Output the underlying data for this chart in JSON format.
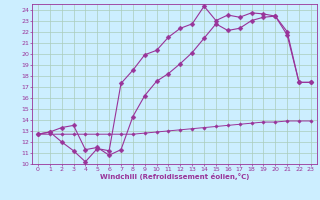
{
  "title": "",
  "xlabel": "Windchill (Refroidissement éolien,°C)",
  "ylabel": "",
  "bg_color": "#cceeff",
  "grid_color": "#aaccbb",
  "line_color": "#993399",
  "xlim": [
    -0.5,
    23.5
  ],
  "ylim": [
    10,
    24.5
  ],
  "xticks": [
    0,
    1,
    2,
    3,
    4,
    5,
    6,
    7,
    8,
    9,
    10,
    11,
    12,
    13,
    14,
    15,
    16,
    17,
    18,
    19,
    20,
    21,
    22,
    23
  ],
  "yticks": [
    10,
    11,
    12,
    13,
    14,
    15,
    16,
    17,
    18,
    19,
    20,
    21,
    22,
    23,
    24
  ],
  "line1_x": [
    0,
    1,
    2,
    3,
    4,
    5,
    6,
    7,
    8,
    9,
    10,
    11,
    12,
    13,
    14,
    15,
    16,
    17,
    18,
    19,
    20,
    21,
    22,
    23
  ],
  "line1_y": [
    12.7,
    12.9,
    12.0,
    11.2,
    10.2,
    11.4,
    11.2,
    17.3,
    18.5,
    19.9,
    20.3,
    21.5,
    22.3,
    22.7,
    24.3,
    23.0,
    23.5,
    23.3,
    23.7,
    23.6,
    23.4,
    22.0,
    17.4,
    17.4
  ],
  "line2_x": [
    0,
    1,
    2,
    3,
    4,
    5,
    6,
    7,
    8,
    9,
    10,
    11,
    12,
    13,
    14,
    15,
    16,
    17,
    18,
    19,
    20,
    21,
    22,
    23
  ],
  "line2_y": [
    12.7,
    12.9,
    13.3,
    13.5,
    11.3,
    11.5,
    10.8,
    11.3,
    14.3,
    16.2,
    17.5,
    18.2,
    19.1,
    20.1,
    21.4,
    22.7,
    22.1,
    22.3,
    23.0,
    23.3,
    23.4,
    21.7,
    17.4,
    17.4
  ],
  "line3_x": [
    0,
    1,
    2,
    3,
    4,
    5,
    6,
    7,
    8,
    9,
    10,
    11,
    12,
    13,
    14,
    15,
    16,
    17,
    18,
    19,
    20,
    21,
    22,
    23
  ],
  "line3_y": [
    12.7,
    12.7,
    12.7,
    12.7,
    12.7,
    12.7,
    12.7,
    12.7,
    12.7,
    12.8,
    12.9,
    13.0,
    13.1,
    13.2,
    13.3,
    13.4,
    13.5,
    13.6,
    13.7,
    13.8,
    13.8,
    13.9,
    13.9,
    13.9
  ],
  "tick_fontsize": 4.5,
  "xlabel_fontsize": 5.0
}
